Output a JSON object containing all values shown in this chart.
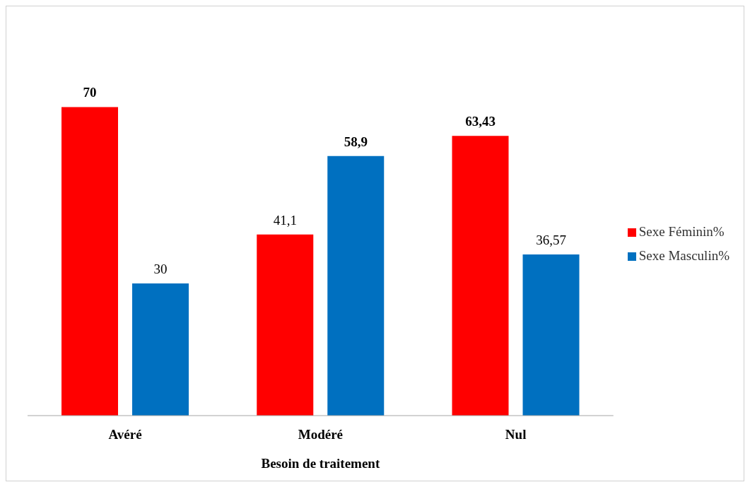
{
  "chart_data": {
    "type": "bar",
    "xlabel": "Besoin de traitement",
    "categories": [
      "Avéré",
      "Modéré",
      "Nul"
    ],
    "series": [
      {
        "name": "Sexe Féminin%",
        "color": "#ff0000",
        "values": [
          70,
          41.1,
          63.43
        ],
        "value_labels": [
          "70",
          "41,1",
          "63,43"
        ]
      },
      {
        "name": "Sexe Masculin%",
        "color": "#0070c0",
        "values": [
          30,
          58.9,
          36.57
        ],
        "value_labels": [
          "30",
          "58,9",
          "36,57"
        ]
      }
    ],
    "legend": "right",
    "grid": false,
    "tick_labels": "x"
  }
}
